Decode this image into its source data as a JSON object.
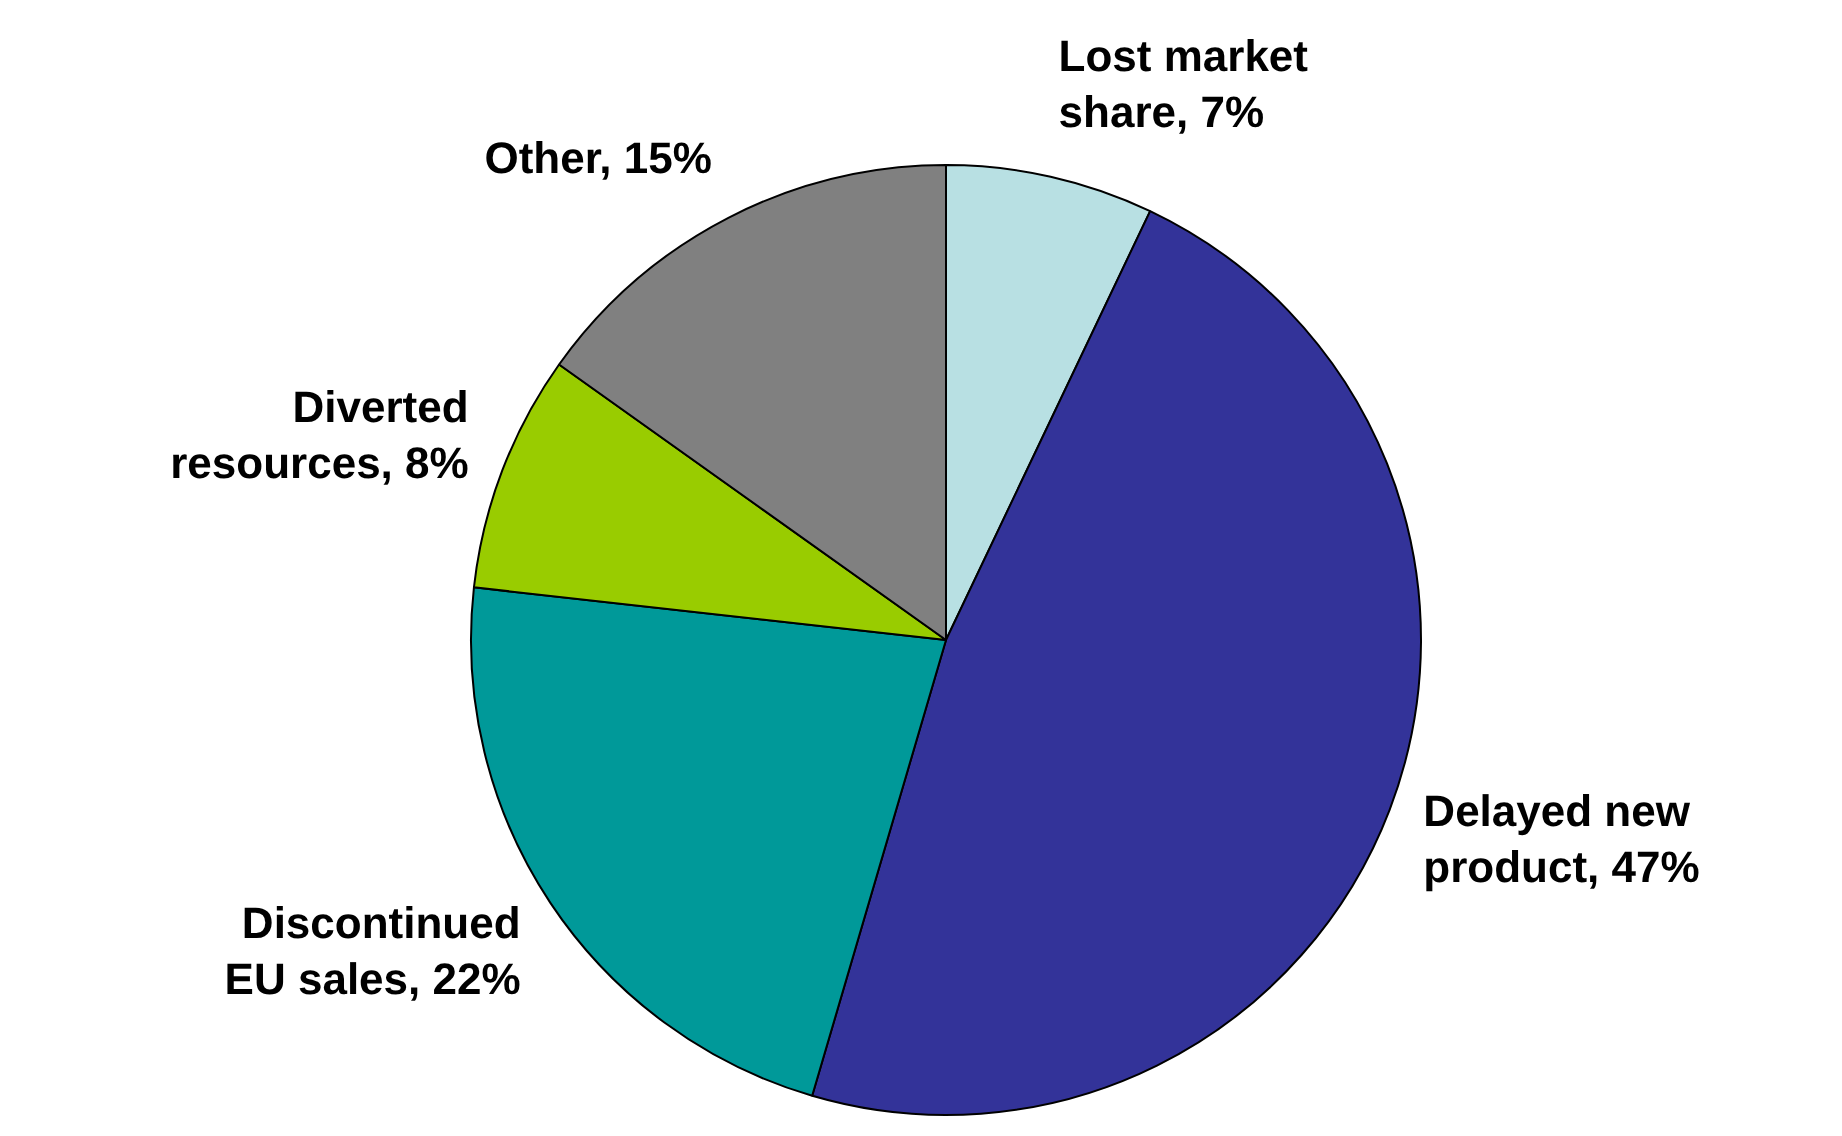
{
  "chart_data": {
    "type": "pie",
    "categories": [
      "Lost market share",
      "Delayed new product",
      "Discontinued EU sales",
      "Diverted resources",
      "Other"
    ],
    "values": [
      7,
      47,
      22,
      8,
      15
    ],
    "value_labels": [
      "7%",
      "47%",
      "22%",
      "8%",
      "15%"
    ],
    "colors": [
      "#b8e0e3",
      "#333399",
      "#009999",
      "#99cc00",
      "#808080"
    ],
    "legend": false
  }
}
